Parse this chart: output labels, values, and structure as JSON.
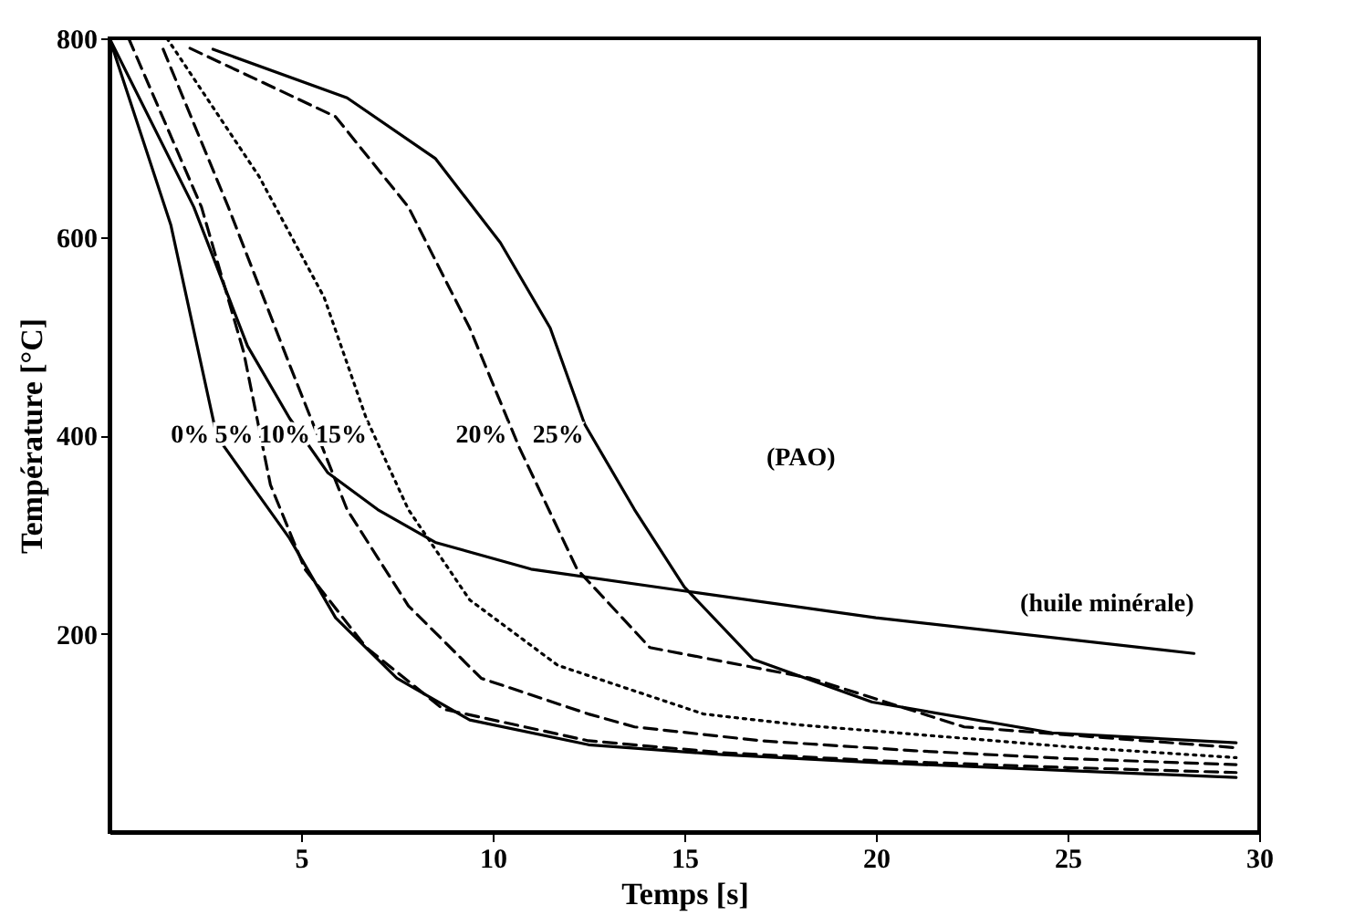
{
  "chart_data": {
    "type": "line",
    "xlabel": "Temps [s]",
    "ylabel": "Température [°C]",
    "xlim": [
      0,
      30
    ],
    "ylim": [
      0,
      800
    ],
    "xticks": [
      5,
      10,
      15,
      20,
      25,
      30
    ],
    "yticks": [
      200,
      400,
      600,
      800
    ],
    "grid": false,
    "marker": "none",
    "series": [
      {
        "name": "0%",
        "color": "#000000",
        "line_style": "solid",
        "x": [
          0,
          1.6,
          2.8,
          3.7,
          4.7,
          5.9,
          7.5,
          9.4,
          12.5,
          16,
          20,
          25,
          29.4
        ],
        "values": [
          800,
          612,
          399,
          350,
          296,
          216,
          155,
          113,
          88,
          78,
          70,
          62,
          55
        ]
      },
      {
        "name": "5%",
        "color": "#000000",
        "line_style": "dashed",
        "x": [
          0.5,
          2.4,
          3.5,
          4.2,
          5.1,
          6.7,
          8.7,
          12.5,
          16,
          20,
          25,
          29.4
        ],
        "values": [
          800,
          630,
          484,
          350,
          265,
          186,
          124,
          92,
          80,
          72,
          65,
          60
        ]
      },
      {
        "name": "10%",
        "color": "#000000",
        "line_style": "dashed",
        "x": [
          1.4,
          3.1,
          4.7,
          6.2,
          7.8,
          9.7,
          12.5,
          13.7,
          17,
          21,
          25,
          29.4
        ],
        "values": [
          789,
          630,
          471,
          325,
          228,
          155,
          119,
          106,
          92,
          82,
          74,
          68
        ]
      },
      {
        "name": "15%",
        "color": "#000000",
        "line_style": "dotted",
        "x": [
          1.5,
          3.9,
          5.6,
          6.7,
          7.8,
          9.4,
          11.7,
          15.5,
          18,
          21.5,
          25,
          29.4
        ],
        "values": [
          800,
          661,
          539,
          417,
          325,
          234,
          168,
          119,
          108,
          97,
          86,
          75
        ]
      },
      {
        "name": "20%",
        "color": "#000000",
        "line_style": "dashed",
        "x": [
          2.1,
          5.9,
          7.8,
          9.4,
          10.7,
          12.2,
          14.1,
          18.3,
          22.3,
          26,
          29.4
        ],
        "values": [
          790,
          721,
          630,
          508,
          387,
          265,
          186,
          155,
          106,
          95,
          85
        ]
      },
      {
        "name": "25%",
        "color": "#000000",
        "line_style": "solid",
        "x": [
          2.7,
          6.2,
          8.5,
          10.2,
          11.5,
          12.4,
          13.7,
          15,
          16.8,
          19.9,
          24.6,
          29.4
        ],
        "values": [
          789,
          740,
          679,
          594,
          508,
          411,
          325,
          247,
          174,
          131,
          100,
          90
        ]
      },
      {
        "name": "(huile minérale)",
        "color": "#000000",
        "line_style": "solid",
        "x": [
          0,
          2.2,
          3.6,
          4.7,
          5.7,
          7,
          8.5,
          11,
          15,
          20,
          28.3
        ],
        "values": [
          800,
          630,
          490,
          417,
          362,
          325,
          292,
          265,
          243,
          216,
          180
        ]
      }
    ],
    "annotations": [
      "(PAO)"
    ]
  }
}
